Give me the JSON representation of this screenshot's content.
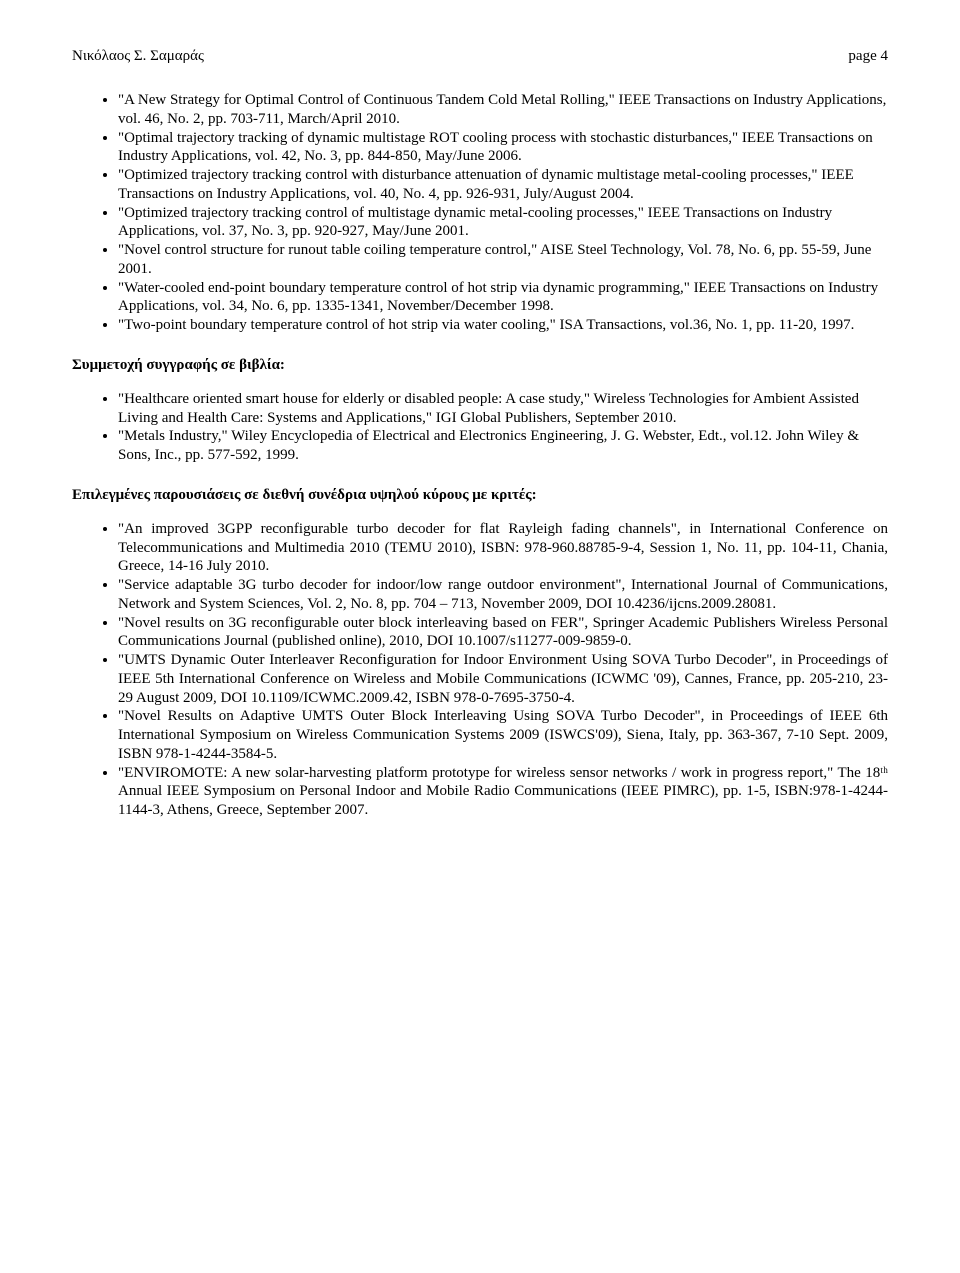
{
  "header": {
    "left": "Νικόλαος Σ. Σαμαράς",
    "right": "page 4"
  },
  "sections": {
    "s1": {
      "items": [
        "\"A New Strategy for Optimal Control of Continuous Tandem Cold Metal Rolling,\" IEEE Transactions on Industry Applications, vol. 46, No. 2, pp. 703-711, March/April 2010.",
        "\"Optimal trajectory tracking of dynamic multistage ROT cooling process with stochastic disturbances,\" IEEE Transactions on Industry Applications, vol. 42, No. 3, pp. 844-850, May/June 2006.",
        " \"Optimized trajectory tracking control with disturbance attenuation of dynamic multistage metal-cooling processes,\" IEEE Transactions on Industry Applications, vol. 40, No. 4, pp. 926-931, July/August 2004.",
        " \"Optimized trajectory tracking control of multistage dynamic metal-cooling processes,\" IEEE Transactions on Industry Applications, vol. 37, No. 3, pp. 920-927, May/June 2001.",
        "\"Novel control structure for runout table coiling temperature control,\" AISE Steel Technology, Vol. 78, No. 6, pp. 55-59, June 2001.",
        " \"Water-cooled end-point boundary temperature control of hot strip via dynamic programming,\" IEEE Transactions on Industry Applications, vol. 34, No. 6, pp. 1335-1341, November/December 1998.",
        " \"Two-point boundary temperature control of hot strip via water cooling,\" ISA Transactions, vol.36, No. 1, pp. 11-20, 1997."
      ]
    },
    "s2": {
      "title": "Συμμετοχή συγγραφής  σε βιβλία:",
      "items": [
        " \"Healthcare oriented smart house for elderly or disabled people: A case study,\" Wireless Technologies for Ambient Assisted Living and Health Care: Systems and Applications,\" IGI Global Publishers, September 2010.",
        "\"Metals Industry,\" Wiley Encyclopedia of Electrical and Electronics Engineering, J. G. Webster, Edt., vol.12. John Wiley & Sons, Inc., pp. 577-592, 1999."
      ]
    },
    "s3": {
      "title": "Επιλεγμένες παρουσιάσεις σε διεθνή συνέδρια υψηλού κύρους με κριτές:",
      "items": [
        "\"An improved 3GPP reconfigurable turbo decoder for flat Rayleigh fading channels\", in International Conference on Telecommunications and Multimedia 2010 (TEMU 2010), ISBN: 978-960.88785-9-4, Session 1, No. 11, pp. 104-11, Chania, Greece, 14-16 July 2010.",
        "\"Service adaptable 3G turbo decoder for indoor/low range outdoor environment\", International Journal of Communications, Network and System Sciences, Vol. 2, No. 8, pp. 704 – 713, November 2009, DOI 10.4236/ijcns.2009.28081.",
        "\"Novel results on 3G reconfigurable outer block interleaving based on FER\", Springer Academic Publishers Wireless Personal Communications Journal (published online), 2010, DOI 10.1007/s11277-009-9859-0.",
        "\"UMTS Dynamic Outer Interleaver Reconfiguration for Indoor Environment Using SOVA Turbo Decoder\", in Proceedings of IEEE 5th International Conference on Wireless and Mobile Communications (ICWMC '09), Cannes, France, pp. 205-210, 23-29 August 2009, DOI 10.1109/ICWMC.2009.42, ISBN 978-0-7695-3750-4.",
        "\"Novel Results on Adaptive UMTS Outer Block Interleaving Using SOVA Turbo Decoder\", in Proceedings of IEEE 6th International Symposium on Wireless Communication Systems 2009 (ISWCS'09), Siena, Italy, pp. 363-367, 7-10 Sept. 2009, ISBN 978-1-4244-3584-5.",
        "\"ENVIROMOTE: A new solar-harvesting platform prototype for wireless sensor networks / work in progress report,\" The 18ᵗʰ Annual IEEE Symposium on Personal Indoor and Mobile Radio Communications (IEEE PIMRC), pp. 1-5, ISBN:978-1-4244-1144-3, Athens, Greece, September 2007."
      ]
    }
  }
}
